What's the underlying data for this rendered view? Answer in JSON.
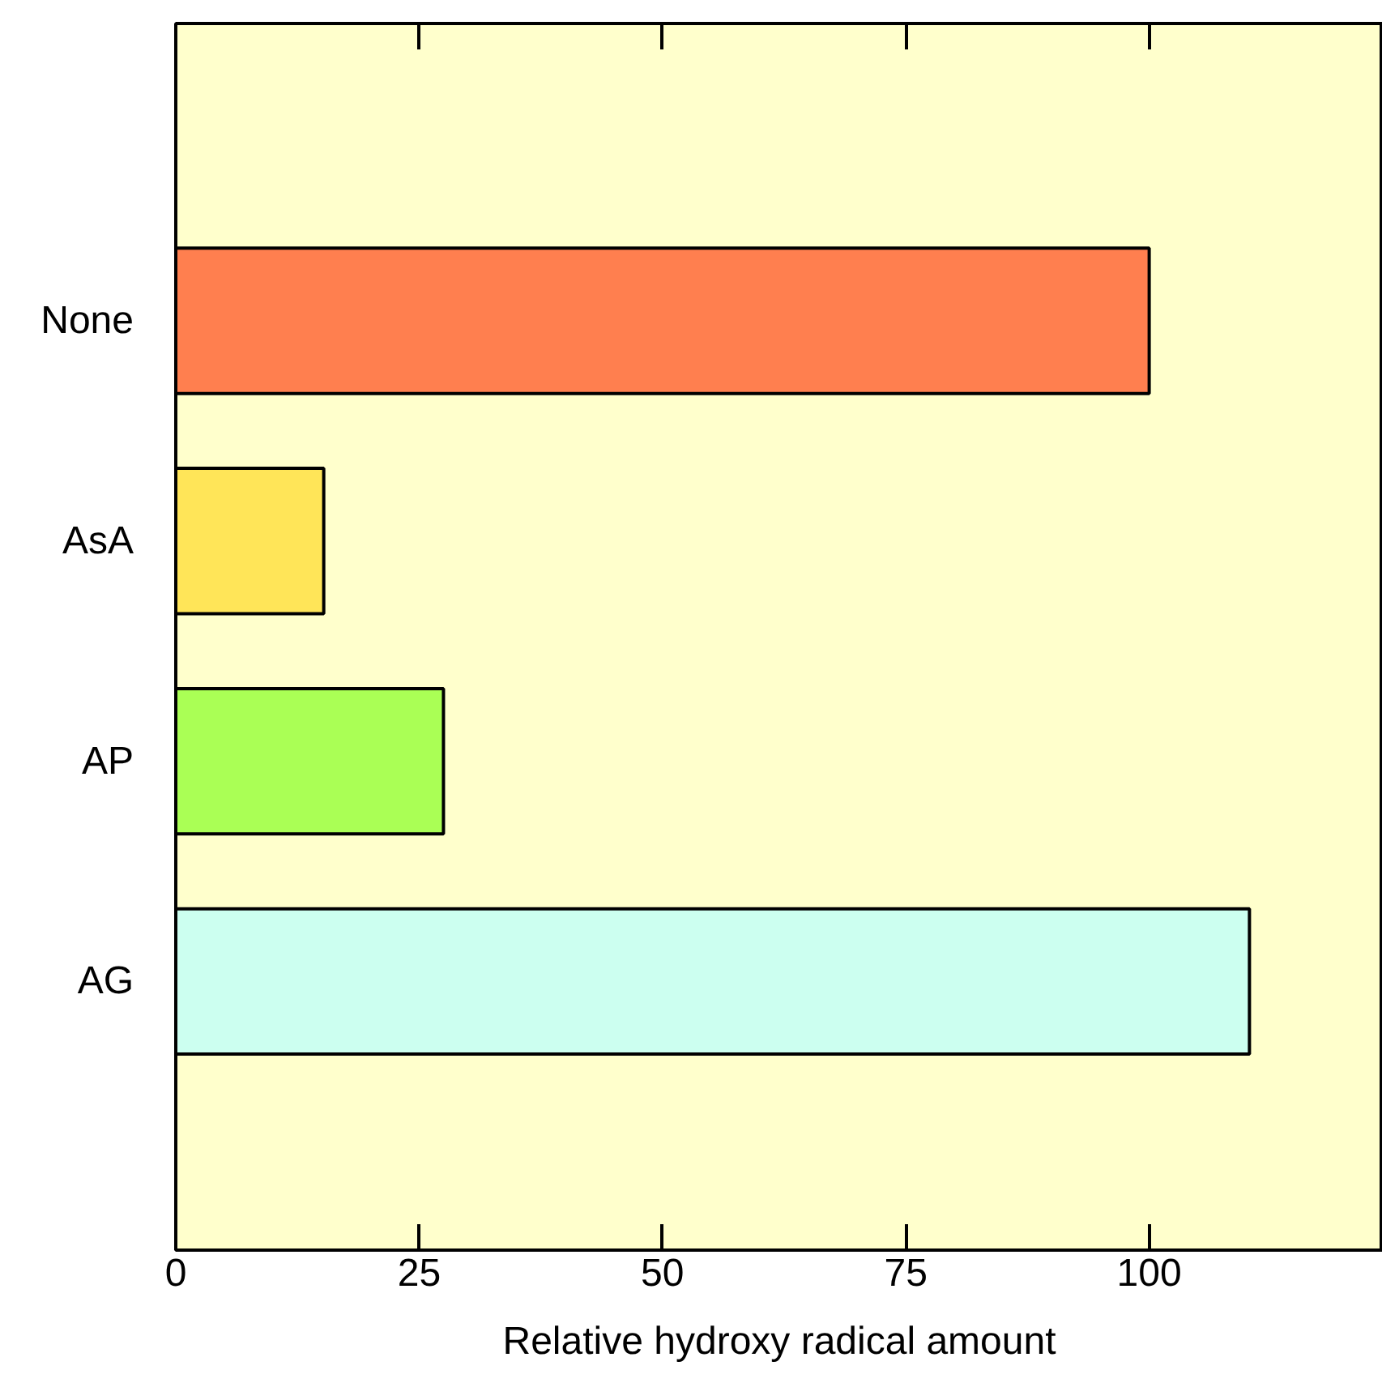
{
  "chart_data": {
    "type": "bar",
    "orientation": "horizontal",
    "xlabel": "Relative hydroxy radical amount",
    "categories": [
      "None",
      "AsA",
      "AP",
      "AG"
    ],
    "values": [
      100,
      15.2,
      27.5,
      110.3
    ],
    "colors": [
      "#ff7f4f",
      "#ffe558",
      "#aaff55",
      "#ccfff0"
    ],
    "xlim": [
      0,
      124
    ],
    "xticks": [
      0,
      25,
      50,
      75,
      100
    ],
    "grid": false
  }
}
